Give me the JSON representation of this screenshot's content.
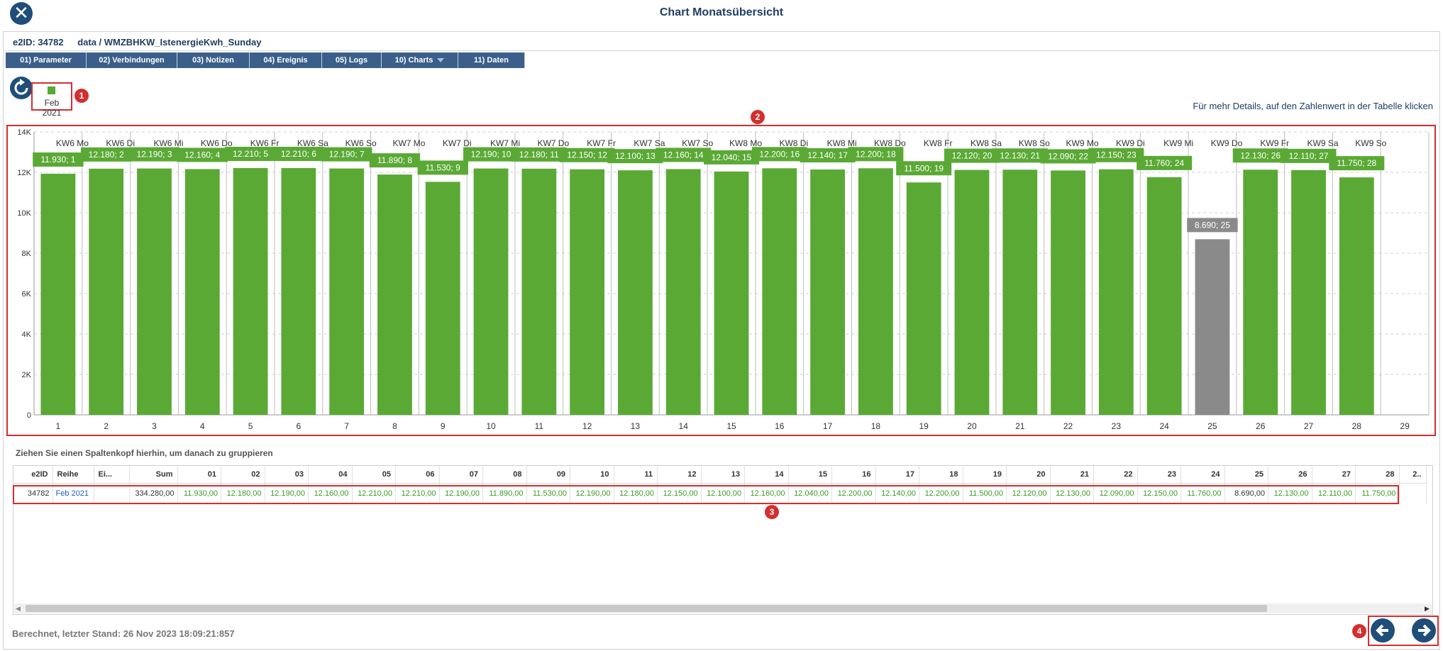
{
  "window": {
    "title": "Chart Monatsübersicht"
  },
  "header": {
    "e2id": "e2ID: 34782",
    "path": "data / WMZBHKW_IstenergieKwh_Sunday"
  },
  "tabs": [
    {
      "label": "01) Parameter"
    },
    {
      "label": "02) Verbindungen"
    },
    {
      "label": "03) Notizen"
    },
    {
      "label": "04) Ereignis"
    },
    {
      "label": "05) Logs"
    },
    {
      "label": "10) Charts"
    },
    {
      "label": "11) Daten"
    }
  ],
  "legend": {
    "label": "Feb 2021",
    "color": "#5aa935"
  },
  "markers": [
    "1",
    "2",
    "3",
    "4"
  ],
  "hint": "Für mehr Details, auf den Zahlenwert in der Tabelle  klicken",
  "chart_data": {
    "type": "bar",
    "categories": [
      "1",
      "2",
      "3",
      "4",
      "5",
      "6",
      "7",
      "8",
      "9",
      "10",
      "11",
      "12",
      "13",
      "14",
      "15",
      "16",
      "17",
      "18",
      "19",
      "20",
      "21",
      "22",
      "23",
      "24",
      "25",
      "26",
      "27",
      "28",
      "29"
    ],
    "top_labels": [
      "KW6 Mo",
      "KW6 Di",
      "KW6 Mi",
      "KW6 Do",
      "KW6 Fr",
      "KW6 Sa",
      "KW6 So",
      "KW7 Mo",
      "KW7 Di",
      "KW7 Mi",
      "KW7 Do",
      "KW7 Fr",
      "KW7 Sa",
      "KW7 So",
      "KW8 Mo",
      "KW8 Di",
      "KW8 Mi",
      "KW8 Do",
      "KW8 Fr",
      "KW8 Sa",
      "KW8 So",
      "KW9 Mo",
      "KW9 Di",
      "KW9 Mi",
      "KW9 Do",
      "KW9 Fr",
      "KW9 Sa",
      "KW9 So"
    ],
    "series": [
      {
        "name": "Feb 2021",
        "values": [
          11930,
          12180,
          12190,
          12160,
          12210,
          12210,
          12190,
          11890,
          11530,
          12190,
          12180,
          12150,
          12100,
          12160,
          12040,
          12200,
          12140,
          12200,
          11500,
          12120,
          12130,
          12090,
          12150,
          11760,
          8690,
          12130,
          12110,
          11750,
          null
        ]
      }
    ],
    "data_labels": [
      "11.930; 1",
      "12.180; 2",
      "12.190; 3",
      "12.160; 4",
      "12.210; 5",
      "12.210; 6",
      "12.190; 7",
      "11.890; 8",
      "11.530; 9",
      "12.190; 10",
      "12.180; 11",
      "12.150; 12",
      "12.100; 13",
      "12.160; 14",
      "12.040; 15",
      "12.200; 16",
      "12.140; 17",
      "12.200; 18",
      "11.500; 19",
      "12.120; 20",
      "12.130; 21",
      "12.090; 22",
      "12.150; 23",
      "11.760; 24",
      "8.690; 25",
      "12.130; 26",
      "12.110; 27",
      "11.750; 28"
    ],
    "highlight_index": 24,
    "highlight_color": "#8a8a8a",
    "ylim": [
      0,
      14000
    ],
    "yticks": [
      "0",
      "2K",
      "4K",
      "6K",
      "8K",
      "10K",
      "12K",
      "14K"
    ],
    "grid": true
  },
  "group_hint": "Ziehen Sie einen Spaltenkopf hierhin, um danach zu gruppieren",
  "table": {
    "headers": [
      "e2ID",
      "Reihe",
      "Ei...",
      "Sum",
      "01",
      "02",
      "03",
      "04",
      "05",
      "06",
      "07",
      "08",
      "09",
      "10",
      "11",
      "12",
      "13",
      "14",
      "15",
      "16",
      "17",
      "18",
      "19",
      "20",
      "21",
      "22",
      "23",
      "24",
      "25",
      "26",
      "27",
      "28",
      "2.."
    ],
    "row": [
      "34782",
      "Feb 2021",
      "",
      "334.280,00",
      "11.930,00",
      "12.180,00",
      "12.190,00",
      "12.160,00",
      "12.210,00",
      "12.210,00",
      "12.190,00",
      "11.890,00",
      "11.530,00",
      "12.190,00",
      "12.180,00",
      "12.150,00",
      "12.100,00",
      "12.160,00",
      "12.040,00",
      "12.200,00",
      "12.140,00",
      "12.200,00",
      "11.500,00",
      "12.120,00",
      "12.130,00",
      "12.090,00",
      "12.150,00",
      "11.760,00",
      "8.690,00",
      "12.130,00",
      "12.110,00",
      "11.750,00",
      ""
    ]
  },
  "footer": {
    "status": "Berechnet, letzter Stand: 26 Nov 2023 18:09:21:857"
  },
  "colors": {
    "accent": "#1f4e79",
    "bar": "#5aa935",
    "marker": "#d32f2f"
  }
}
